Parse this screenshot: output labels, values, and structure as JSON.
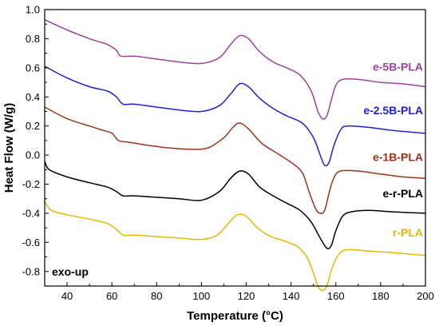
{
  "chart_data": {
    "type": "line",
    "title": "",
    "xlabel": "Temperature (°C)",
    "ylabel": "Heat Flow (W/g)",
    "xlim": [
      30,
      200
    ],
    "ylim": [
      -0.9,
      1.0
    ],
    "grid": false,
    "legend": "inline-right",
    "x_ticks": [
      40,
      60,
      80,
      100,
      120,
      140,
      160,
      180,
      200
    ],
    "y_ticks": [
      1.0,
      0.8,
      0.6,
      0.4,
      0.2,
      0.0,
      -0.2,
      -0.4,
      -0.6,
      -0.8
    ],
    "annotation": "exo-up",
    "series": [
      {
        "name": "e-5B-PLA",
        "color": "#a0409a",
        "points": [
          [
            30,
            0.93
          ],
          [
            40,
            0.86
          ],
          [
            50,
            0.8
          ],
          [
            58,
            0.76
          ],
          [
            62,
            0.72
          ],
          [
            64,
            0.68
          ],
          [
            70,
            0.68
          ],
          [
            80,
            0.66
          ],
          [
            90,
            0.64
          ],
          [
            100,
            0.63
          ],
          [
            108,
            0.67
          ],
          [
            113,
            0.76
          ],
          [
            117,
            0.82
          ],
          [
            121,
            0.8
          ],
          [
            126,
            0.71
          ],
          [
            132,
            0.64
          ],
          [
            138,
            0.6
          ],
          [
            144,
            0.55
          ],
          [
            149,
            0.44
          ],
          [
            152,
            0.3
          ],
          [
            154,
            0.25
          ],
          [
            156,
            0.27
          ],
          [
            158,
            0.38
          ],
          [
            160,
            0.48
          ],
          [
            163,
            0.52
          ],
          [
            170,
            0.52
          ],
          [
            180,
            0.5
          ],
          [
            190,
            0.49
          ],
          [
            200,
            0.47
          ]
        ]
      },
      {
        "name": "e-2.5B-PLA",
        "color": "#1f1fd4",
        "points": [
          [
            30,
            0.61
          ],
          [
            40,
            0.53
          ],
          [
            50,
            0.47
          ],
          [
            58,
            0.44
          ],
          [
            62,
            0.4
          ],
          [
            65,
            0.35
          ],
          [
            70,
            0.35
          ],
          [
            80,
            0.33
          ],
          [
            90,
            0.31
          ],
          [
            100,
            0.3
          ],
          [
            108,
            0.34
          ],
          [
            113,
            0.42
          ],
          [
            117,
            0.49
          ],
          [
            121,
            0.47
          ],
          [
            126,
            0.39
          ],
          [
            132,
            0.32
          ],
          [
            138,
            0.27
          ],
          [
            145,
            0.22
          ],
          [
            150,
            0.12
          ],
          [
            153,
            0.0
          ],
          [
            155,
            -0.07
          ],
          [
            157,
            -0.05
          ],
          [
            159,
            0.06
          ],
          [
            162,
            0.17
          ],
          [
            165,
            0.2
          ],
          [
            175,
            0.19
          ],
          [
            185,
            0.17
          ],
          [
            200,
            0.15
          ]
        ]
      },
      {
        "name": "e-1B-PLA",
        "color": "#a0321e",
        "points": [
          [
            30,
            0.33
          ],
          [
            40,
            0.25
          ],
          [
            50,
            0.2
          ],
          [
            56,
            0.17
          ],
          [
            60,
            0.15
          ],
          [
            63,
            0.1
          ],
          [
            67,
            0.09
          ],
          [
            75,
            0.07
          ],
          [
            85,
            0.05
          ],
          [
            95,
            0.04
          ],
          [
            103,
            0.05
          ],
          [
            110,
            0.12
          ],
          [
            114,
            0.19
          ],
          [
            117,
            0.22
          ],
          [
            121,
            0.18
          ],
          [
            127,
            0.08
          ],
          [
            134,
            0.01
          ],
          [
            140,
            -0.05
          ],
          [
            145,
            -0.12
          ],
          [
            148,
            -0.25
          ],
          [
            151,
            -0.37
          ],
          [
            153,
            -0.4
          ],
          [
            155,
            -0.38
          ],
          [
            157,
            -0.26
          ],
          [
            159,
            -0.16
          ],
          [
            162,
            -0.11
          ],
          [
            170,
            -0.11
          ],
          [
            180,
            -0.13
          ],
          [
            190,
            -0.15
          ],
          [
            200,
            -0.16
          ]
        ]
      },
      {
        "name": "e-r-PLA",
        "color": "#000000",
        "points": [
          [
            30,
            -0.04
          ],
          [
            32,
            -0.1
          ],
          [
            40,
            -0.15
          ],
          [
            50,
            -0.19
          ],
          [
            58,
            -0.22
          ],
          [
            62,
            -0.25
          ],
          [
            65,
            -0.28
          ],
          [
            70,
            -0.28
          ],
          [
            80,
            -0.29
          ],
          [
            90,
            -0.3
          ],
          [
            100,
            -0.31
          ],
          [
            108,
            -0.25
          ],
          [
            113,
            -0.16
          ],
          [
            117,
            -0.11
          ],
          [
            121,
            -0.13
          ],
          [
            126,
            -0.22
          ],
          [
            132,
            -0.28
          ],
          [
            138,
            -0.33
          ],
          [
            144,
            -0.38
          ],
          [
            149,
            -0.46
          ],
          [
            153,
            -0.57
          ],
          [
            156,
            -0.64
          ],
          [
            158,
            -0.62
          ],
          [
            160,
            -0.52
          ],
          [
            163,
            -0.42
          ],
          [
            167,
            -0.39
          ],
          [
            175,
            -0.38
          ],
          [
            185,
            -0.39
          ],
          [
            200,
            -0.4
          ]
        ]
      },
      {
        "name": "r-PLA",
        "color": "#e6b800",
        "points": [
          [
            30,
            -0.32
          ],
          [
            33,
            -0.38
          ],
          [
            40,
            -0.41
          ],
          [
            50,
            -0.44
          ],
          [
            58,
            -0.47
          ],
          [
            62,
            -0.51
          ],
          [
            65,
            -0.55
          ],
          [
            70,
            -0.55
          ],
          [
            80,
            -0.56
          ],
          [
            90,
            -0.57
          ],
          [
            100,
            -0.58
          ],
          [
            107,
            -0.55
          ],
          [
            112,
            -0.47
          ],
          [
            116,
            -0.41
          ],
          [
            120,
            -0.42
          ],
          [
            125,
            -0.5
          ],
          [
            131,
            -0.56
          ],
          [
            137,
            -0.59
          ],
          [
            143,
            -0.63
          ],
          [
            147,
            -0.7
          ],
          [
            150,
            -0.81
          ],
          [
            152,
            -0.9
          ],
          [
            154,
            -0.93
          ],
          [
            156,
            -0.9
          ],
          [
            158,
            -0.79
          ],
          [
            161,
            -0.69
          ],
          [
            165,
            -0.65
          ],
          [
            175,
            -0.66
          ],
          [
            185,
            -0.67
          ],
          [
            200,
            -0.69
          ]
        ]
      }
    ]
  }
}
